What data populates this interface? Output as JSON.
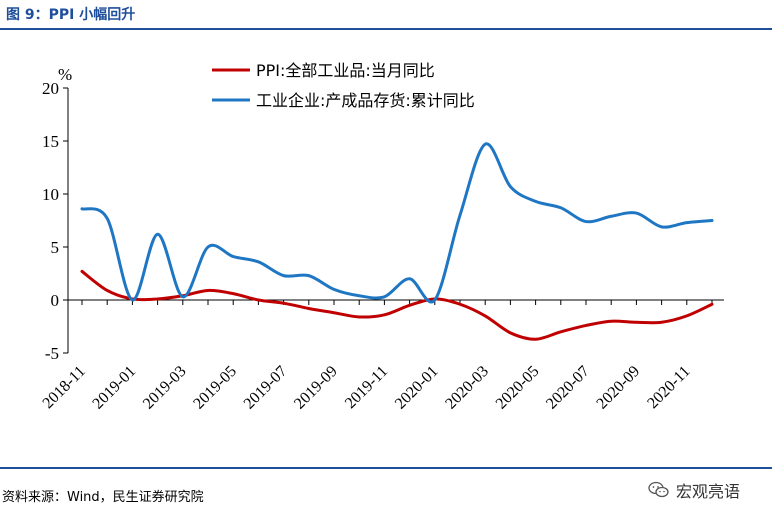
{
  "header": {
    "title": "图 9：PPI 小幅回升"
  },
  "footer": {
    "source": "资料来源：Wind，民生证券研究院",
    "watermark": "宏观亮语"
  },
  "chart_data": {
    "type": "line",
    "ylabel": "%",
    "ylim": [
      -5,
      20
    ],
    "yticks": [
      -5,
      0,
      5,
      10,
      15,
      20
    ],
    "x": [
      "2018-11",
      "2018-12",
      "2019-01",
      "2019-02",
      "2019-03",
      "2019-04",
      "2019-05",
      "2019-06",
      "2019-07",
      "2019-08",
      "2019-09",
      "2019-10",
      "2019-11",
      "2019-12",
      "2020-01",
      "2020-02",
      "2020-03",
      "2020-04",
      "2020-05",
      "2020-06",
      "2020-07",
      "2020-08",
      "2020-09",
      "2020-10",
      "2020-11",
      "2020-12"
    ],
    "xtick_labels": [
      "2018-11",
      "2019-01",
      "2019-03",
      "2019-05",
      "2019-07",
      "2019-09",
      "2019-11",
      "2020-01",
      "2020-03",
      "2020-05",
      "2020-07",
      "2020-09",
      "2020-11"
    ],
    "legend_position": "top-center",
    "grid": false,
    "series": [
      {
        "name": "PPI:全部工业品:当月同比",
        "color": "#c00000",
        "values": [
          2.7,
          0.9,
          0.1,
          0.1,
          0.4,
          0.9,
          0.6,
          0.0,
          -0.3,
          -0.8,
          -1.2,
          -1.6,
          -1.4,
          -0.5,
          0.1,
          -0.4,
          -1.5,
          -3.1,
          -3.7,
          -3.0,
          -2.4,
          -2.0,
          -2.1,
          -2.1,
          -1.5,
          -0.4
        ]
      },
      {
        "name": "工业企业:产成品存货:累计同比",
        "color": "#1f77c4",
        "values": [
          8.6,
          7.7,
          0.0,
          6.2,
          0.3,
          5.0,
          4.1,
          3.6,
          2.3,
          2.3,
          1.0,
          0.4,
          0.3,
          2.0,
          0.0,
          8.0,
          14.7,
          10.7,
          9.3,
          8.7,
          7.4,
          7.9,
          8.2,
          6.9,
          7.3,
          7.5
        ]
      }
    ]
  }
}
